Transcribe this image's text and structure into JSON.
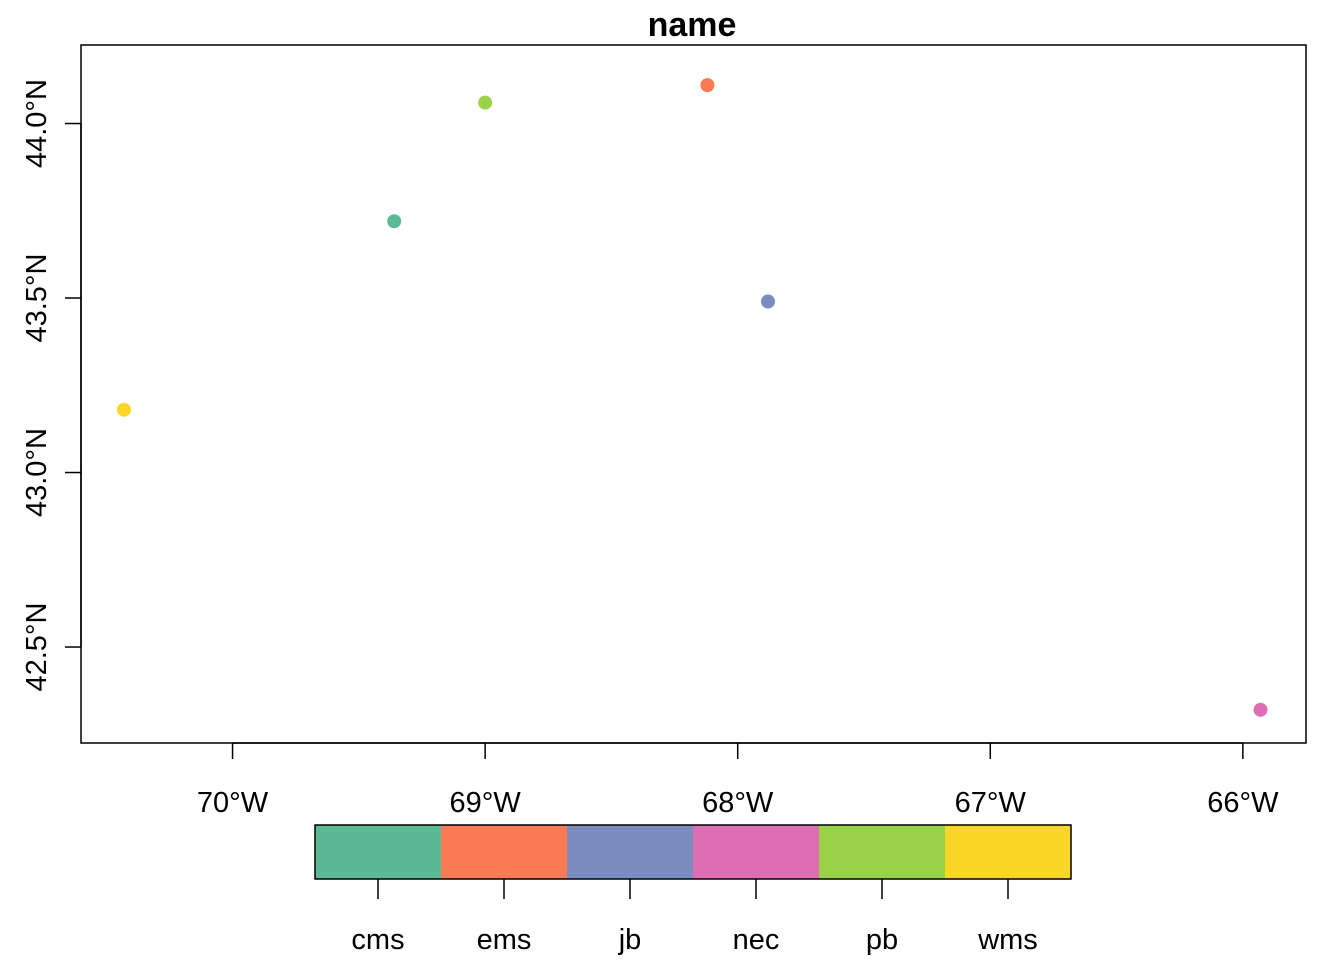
{
  "title": "name",
  "chart_data": {
    "type": "scatter",
    "title": "name",
    "xlabel": "",
    "ylabel": "",
    "xlim": [
      -70.6,
      -65.75
    ],
    "ylim": [
      42.225,
      44.225
    ],
    "grid": false,
    "x_ticks": [
      {
        "value": -70,
        "label": "70°W"
      },
      {
        "value": -69,
        "label": "69°W"
      },
      {
        "value": -68,
        "label": "68°W"
      },
      {
        "value": -67,
        "label": "67°W"
      },
      {
        "value": -66,
        "label": "66°W"
      }
    ],
    "y_ticks": [
      {
        "value": 42.5,
        "label": "42.5°N"
      },
      {
        "value": 43.0,
        "label": "43.0°N"
      },
      {
        "value": 43.5,
        "label": "43.5°N"
      },
      {
        "value": 44.0,
        "label": "44.0°N"
      }
    ],
    "points": [
      {
        "name": "cms",
        "lon": -69.36,
        "lat": 43.72
      },
      {
        "name": "ems",
        "lon": -68.12,
        "lat": 44.11
      },
      {
        "name": "jb",
        "lon": -67.88,
        "lat": 43.49
      },
      {
        "name": "nec",
        "lon": -65.93,
        "lat": 42.32
      },
      {
        "name": "pb",
        "lon": -69.0,
        "lat": 44.06
      },
      {
        "name": "wms",
        "lon": -70.43,
        "lat": 43.18
      }
    ],
    "legend": {
      "placement": "bottom",
      "entries": [
        {
          "label": "cms",
          "color": "#5BBA95"
        },
        {
          "label": "ems",
          "color": "#F97A53"
        },
        {
          "label": "jb",
          "color": "#7B8CBF"
        },
        {
          "label": "nec",
          "color": "#DE6EB4"
        },
        {
          "label": "pb",
          "color": "#99D247"
        },
        {
          "label": "wms",
          "color": "#FDD525"
        }
      ]
    }
  }
}
